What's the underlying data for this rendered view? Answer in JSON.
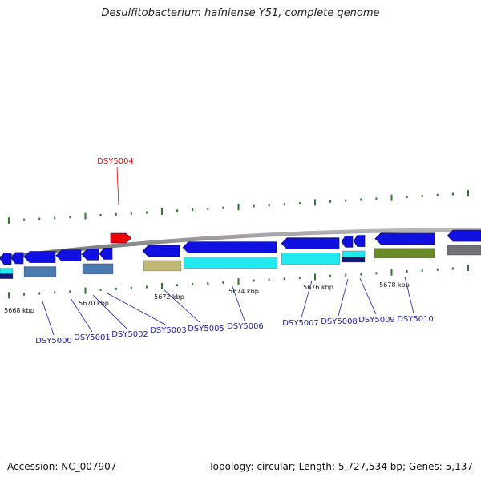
{
  "title": "Desulfitobacterium hafniense Y51, complete genome",
  "accession_line": "Accession: NC_007907",
  "topology_line": "Topology: circular; Length: 5,727,534 bp; Genes: 5,137",
  "colors": {
    "backbone": "#8a8a8a",
    "gene_blue": "#1010e0",
    "highlight": "#ee0000",
    "cyan": "#22e8f0",
    "steel": "#4a7ab0",
    "khaki": "#c0b870",
    "olive": "#6a8a28",
    "navy": "#101878",
    "gray": "#707078",
    "tick": "#2a7a2a",
    "label": "#1a1ab0"
  },
  "scale_labels": [
    "5668 kbp",
    "5670 kbp",
    "5672 kbp",
    "5674 kbp",
    "5676 kbp",
    "5678 kbp"
  ],
  "highlight_gene": "DSY5004",
  "gene_labels": [
    "DSY5000",
    "DSY5001",
    "DSY5002",
    "DSY5003",
    "DSY5005",
    "DSY5006",
    "DSY5007",
    "DSY5008",
    "DSY5009",
    "DSY5010"
  ]
}
